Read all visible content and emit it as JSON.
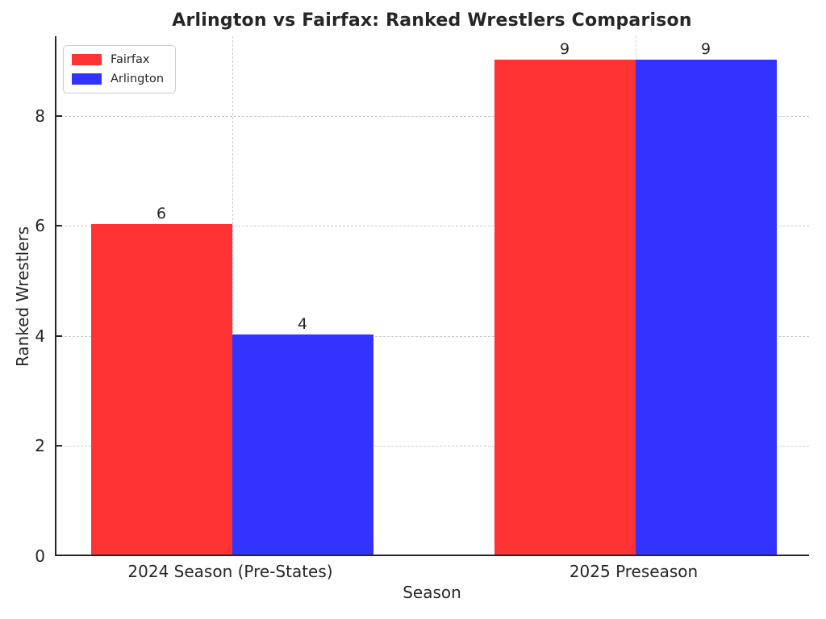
{
  "chart_data": {
    "type": "bar",
    "title": "Arlington vs Fairfax: Ranked Wrestlers Comparison",
    "xlabel": "Season",
    "ylabel": "Ranked Wrestlers",
    "categories": [
      "2024 Season (Pre-States)",
      "2025 Preseason"
    ],
    "series": [
      {
        "name": "Fairfax",
        "color": "#ff3333",
        "values": [
          6,
          9
        ]
      },
      {
        "name": "Arlington",
        "color": "#3333ff",
        "values": [
          4,
          9
        ]
      }
    ],
    "yticks": [
      0,
      2,
      4,
      6,
      8
    ],
    "ylim": [
      0,
      9.45
    ],
    "xlim": [
      -0.435,
      1.435
    ],
    "bar_width": 0.35,
    "bar_offset": 0.175,
    "show_value_labels": true,
    "grid": {
      "style": "dashed",
      "color": "#cccccc",
      "axes": "both"
    },
    "legend_position": "upper left",
    "axis_color": "#262626",
    "background": "#ffffff"
  }
}
